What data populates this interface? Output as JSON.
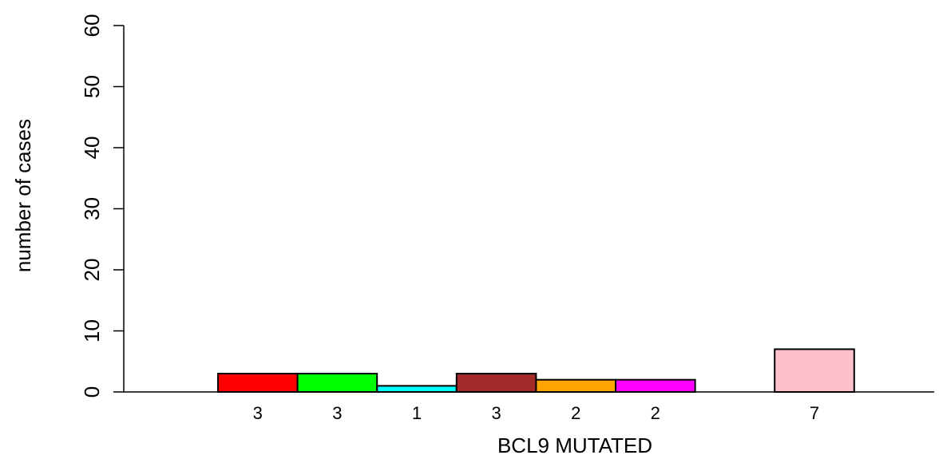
{
  "chart_data": {
    "type": "bar",
    "xlabel": "BCL9 MUTATED",
    "ylabel": "number of cases",
    "ylim": [
      0,
      60
    ],
    "yticks": [
      0,
      10,
      20,
      30,
      40,
      50,
      60
    ],
    "grid": false,
    "legend": "none",
    "bars": [
      {
        "value": 3,
        "label": "3",
        "color": "#ff0000"
      },
      {
        "value": 3,
        "label": "3",
        "color": "#00ff00"
      },
      {
        "value": 1,
        "label": "1",
        "color": "#00ffff"
      },
      {
        "value": 3,
        "label": "3",
        "color": "#a52a2a"
      },
      {
        "value": 2,
        "label": "2",
        "color": "#ffa500"
      },
      {
        "value": 2,
        "label": "2",
        "color": "#ff00ff"
      },
      {
        "value": 0,
        "label": "",
        "color": "#ffffff"
      },
      {
        "value": 7,
        "label": "7",
        "color": "#ffc0cb"
      }
    ]
  }
}
